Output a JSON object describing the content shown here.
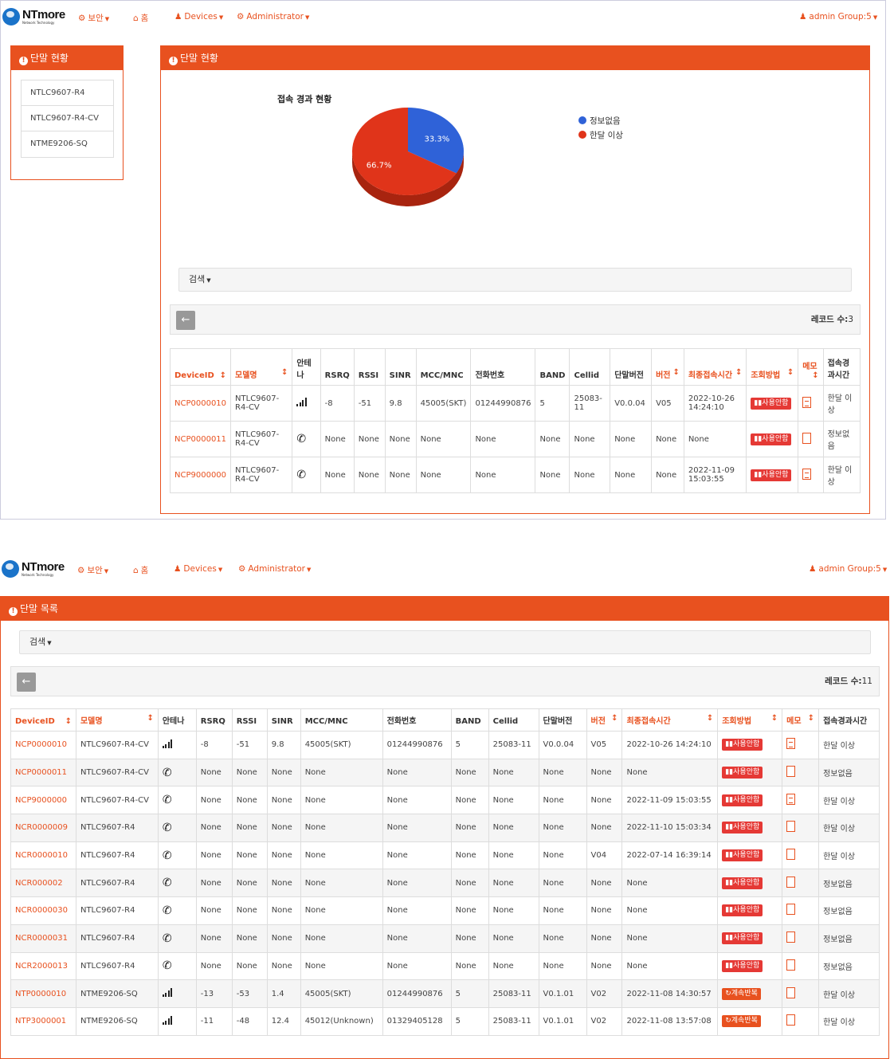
{
  "navbar": {
    "logo_text": "NTmore",
    "logo_sub": "Network Technology",
    "security": "보안",
    "home": "홈",
    "devices": "Devices",
    "administrator": "Administrator",
    "user": "admin Group:5"
  },
  "screen1": {
    "side_panel_title": "단말 현황",
    "device_models": [
      "NTLC9607-R4",
      "NTLC9607-R4-CV",
      "NTME9206-SQ"
    ],
    "main_panel_title": "단말 현황",
    "search_label": "검색",
    "record_label": "레코드 수:",
    "record_count": "3"
  },
  "chart_data": {
    "type": "pie",
    "title": "접속 경과 현황",
    "categories": [
      "정보없음",
      "한달 이상"
    ],
    "values": [
      33.3,
      66.7
    ],
    "labels": [
      "33.3%",
      "66.7%"
    ],
    "colors": [
      "#2f62d8",
      "#e0341a"
    ],
    "legend_position": "top-right"
  },
  "table_small": {
    "headers": [
      "DeviceID",
      "모델명",
      "안테나",
      "RSRQ",
      "RSSI",
      "SINR",
      "MCC/MNC",
      "전화번호",
      "BAND",
      "Cellid",
      "단말버전",
      "버전",
      "최종접속시간",
      "조회방법",
      "메모",
      "접속경과시간"
    ],
    "rows": [
      [
        "NCP0000010",
        "NTLC9607-R4-CV",
        "signal",
        "-8",
        "-51",
        "9.8",
        "45005(SKT)",
        "01244990876",
        "5",
        "25083-11",
        "V0.0.04",
        "V05",
        "2022-10-26 14:24:10",
        "사용안함",
        "memo",
        "한달 이상"
      ],
      [
        "NCP0000011",
        "NTLC9607-R4-CV",
        "phone",
        "None",
        "None",
        "None",
        "None",
        "None",
        "None",
        "None",
        "None",
        "None",
        "None",
        "사용안함",
        "blank",
        "정보없음"
      ],
      [
        "NCP9000000",
        "NTLC9607-R4-CV",
        "phone",
        "None",
        "None",
        "None",
        "None",
        "None",
        "None",
        "None",
        "None",
        "None",
        "2022-11-09 15:03:55",
        "사용안함",
        "memo",
        "한달 이상"
      ]
    ]
  },
  "screen2": {
    "panel_title": "단말 목록",
    "search_label": "검색",
    "record_label": "레코드 수:",
    "record_count": "11"
  },
  "table_large": {
    "headers": [
      "DeviceID",
      "모델명",
      "안테나",
      "RSRQ",
      "RSSI",
      "SINR",
      "MCC/MNC",
      "전화번호",
      "BAND",
      "Cellid",
      "단말버전",
      "버전",
      "최종접속시간",
      "조회방법",
      "메모",
      "접속경과시간"
    ],
    "rows": [
      [
        "NCP0000010",
        "NTLC9607-R4-CV",
        "signal",
        "-8",
        "-51",
        "9.8",
        "45005(SKT)",
        "01244990876",
        "5",
        "25083-11",
        "V0.0.04",
        "V05",
        "2022-10-26 14:24:10",
        "사용안함",
        "memo",
        "한달 이상"
      ],
      [
        "NCP0000011",
        "NTLC9607-R4-CV",
        "phone",
        "None",
        "None",
        "None",
        "None",
        "None",
        "None",
        "None",
        "None",
        "None",
        "None",
        "사용안함",
        "blank",
        "정보없음"
      ],
      [
        "NCP9000000",
        "NTLC9607-R4-CV",
        "phone",
        "None",
        "None",
        "None",
        "None",
        "None",
        "None",
        "None",
        "None",
        "None",
        "2022-11-09 15:03:55",
        "사용안함",
        "memo",
        "한달 이상"
      ],
      [
        "NCR0000009",
        "NTLC9607-R4",
        "phone",
        "None",
        "None",
        "None",
        "None",
        "None",
        "None",
        "None",
        "None",
        "None",
        "2022-11-10 15:03:34",
        "사용안함",
        "blank",
        "한달 이상"
      ],
      [
        "NCR0000010",
        "NTLC9607-R4",
        "phone",
        "None",
        "None",
        "None",
        "None",
        "None",
        "None",
        "None",
        "None",
        "V04",
        "2022-07-14 16:39:14",
        "사용안함",
        "blank",
        "한달 이상"
      ],
      [
        "NCR000002",
        "NTLC9607-R4",
        "phone",
        "None",
        "None",
        "None",
        "None",
        "None",
        "None",
        "None",
        "None",
        "None",
        "None",
        "사용안함",
        "blank",
        "정보없음"
      ],
      [
        "NCR0000030",
        "NTLC9607-R4",
        "phone",
        "None",
        "None",
        "None",
        "None",
        "None",
        "None",
        "None",
        "None",
        "None",
        "None",
        "사용안함",
        "blank",
        "정보없음"
      ],
      [
        "NCR0000031",
        "NTLC9607-R4",
        "phone",
        "None",
        "None",
        "None",
        "None",
        "None",
        "None",
        "None",
        "None",
        "None",
        "None",
        "사용안함",
        "blank",
        "정보없음"
      ],
      [
        "NCR2000013",
        "NTLC9607-R4",
        "phone",
        "None",
        "None",
        "None",
        "None",
        "None",
        "None",
        "None",
        "None",
        "None",
        "None",
        "사용안함",
        "blank",
        "정보없음"
      ],
      [
        "NTP0000010",
        "NTME9206-SQ",
        "signal",
        "-13",
        "-53",
        "1.4",
        "45005(SKT)",
        "01244990876",
        "5",
        "25083-11",
        "V0.1.01",
        "V02",
        "2022-11-08 14:30:57",
        "계속반복",
        "blank",
        "한달 이상"
      ],
      [
        "NTP3000001",
        "NTME9206-SQ",
        "signal",
        "-11",
        "-48",
        "12.4",
        "45012(Unknown)",
        "01329405128",
        "5",
        "25083-11",
        "V0.1.01",
        "V02",
        "2022-11-08 13:57:08",
        "계속반복",
        "blank",
        "한달 이상"
      ]
    ]
  }
}
